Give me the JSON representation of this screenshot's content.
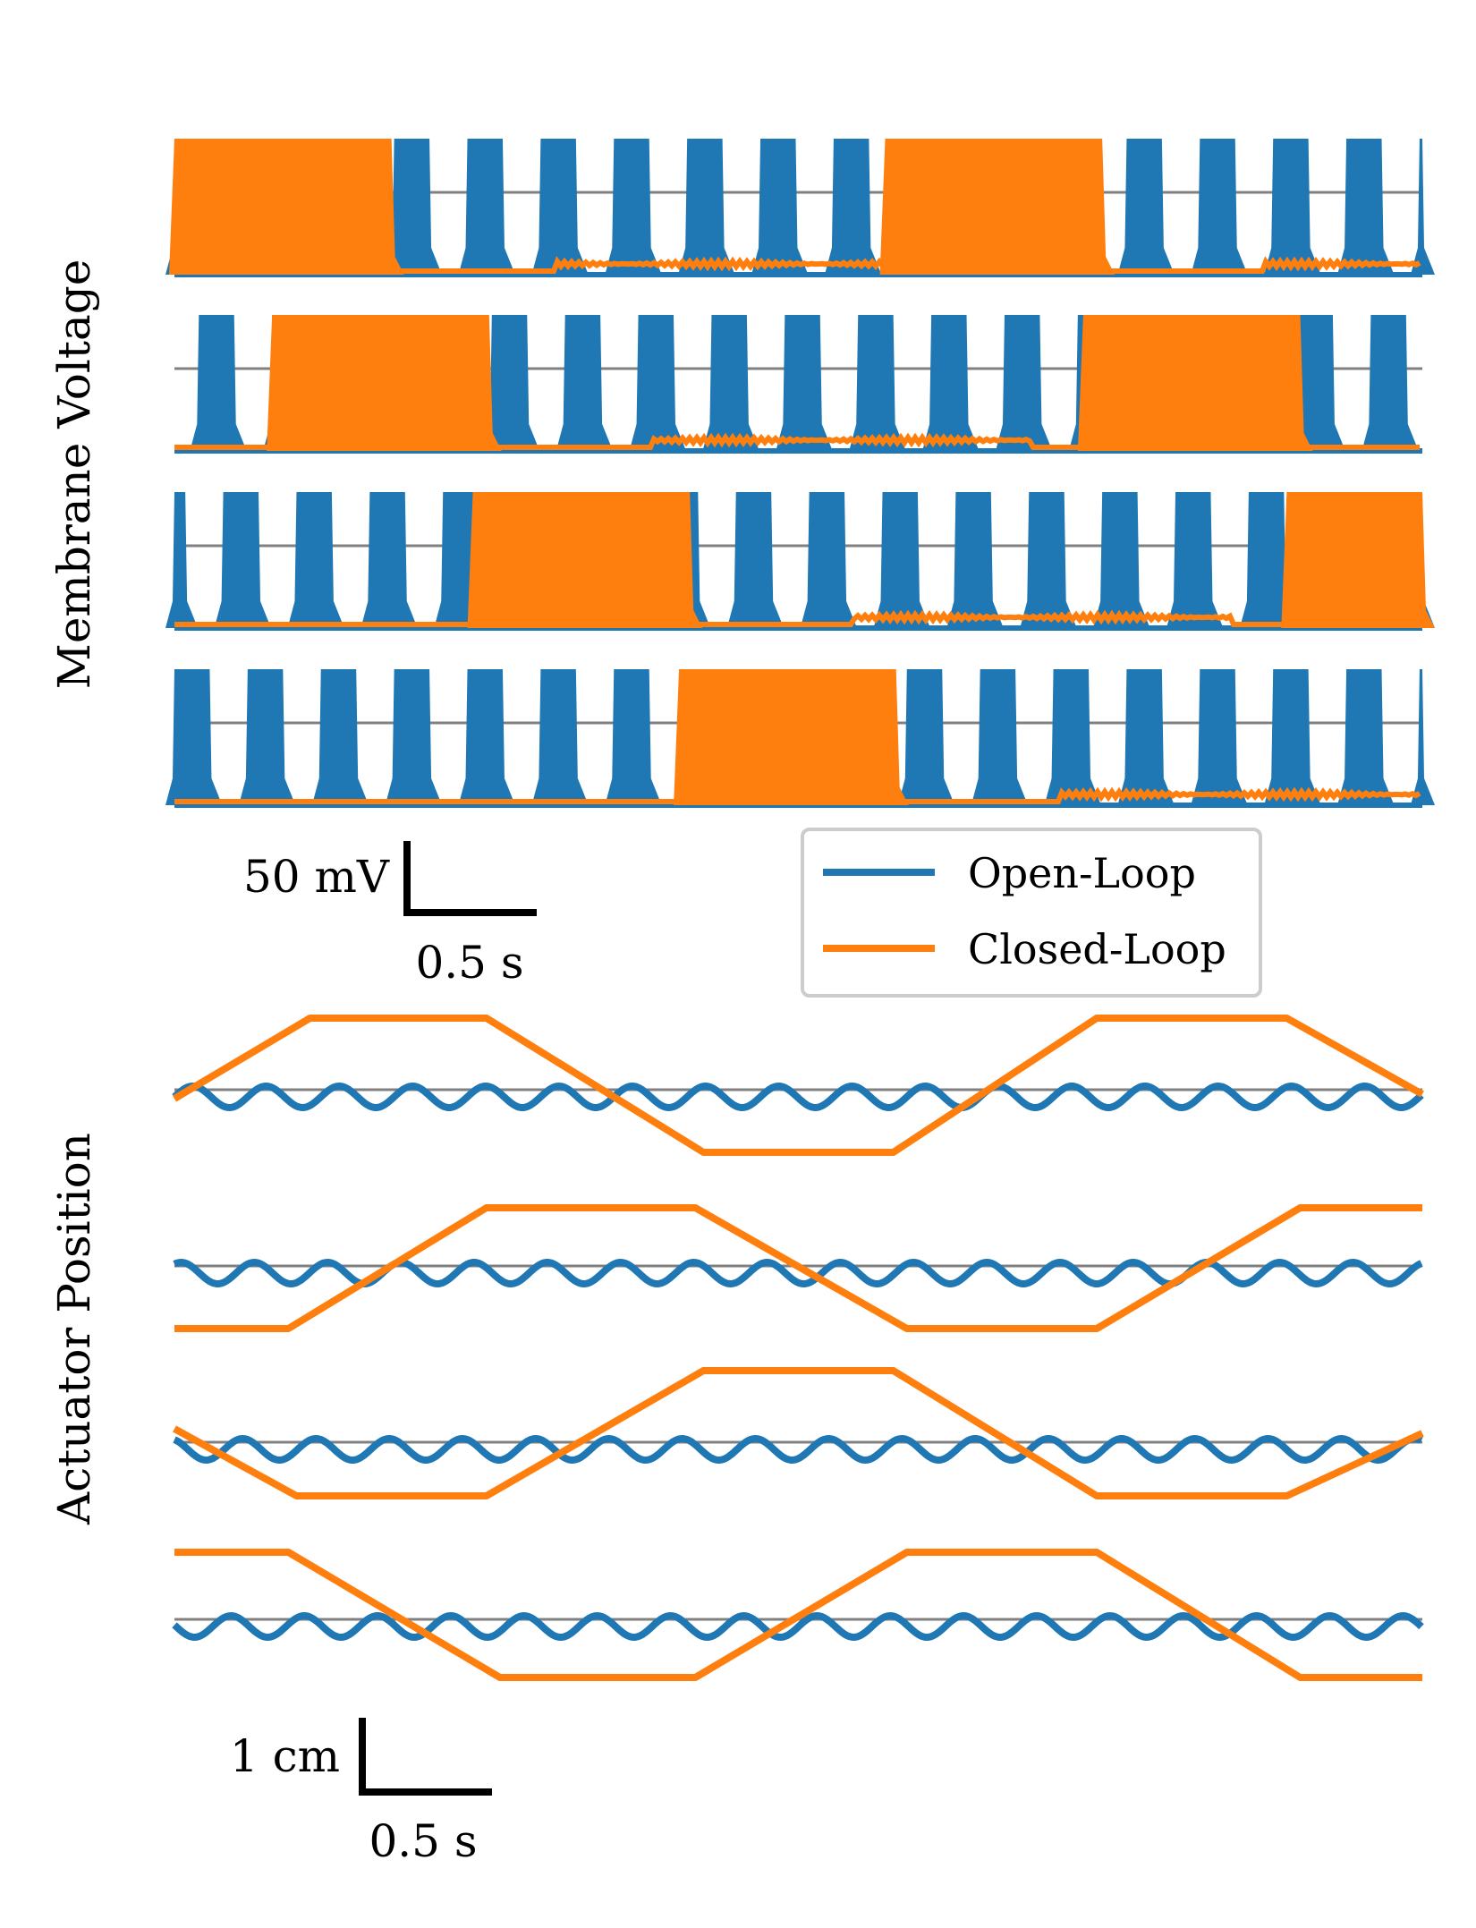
{
  "figure": {
    "colors": {
      "open_loop": "#1f77b4",
      "closed_loop": "#ff7f0e",
      "baseline": "#808080",
      "scalebar": "#000000",
      "legend_border": "#cccccc"
    }
  },
  "chart_data": [
    {
      "type": "line",
      "title": "",
      "ylabel": "Membrane Voltage",
      "xlabel": "",
      "grid": false,
      "legend_position": "center-right below panel",
      "legend": [
        "Open-Loop",
        "Closed-Loop"
      ],
      "scalebar": {
        "vertical_label": "50 mV",
        "vertical_value": 50,
        "vertical_unit": "mV",
        "horizontal_label": "0.5 s",
        "horizontal_value": 0.5,
        "horizontal_unit": "s"
      },
      "x_range_s": [
        0,
        4.6
      ],
      "series": [
        {
          "name": "Open-Loop",
          "description": "bursting neurons",
          "burst_period_s": 0.27,
          "burst_duration_s": 0.13,
          "burst_peak_mV": 30,
          "baseline_mV": -50,
          "traces": [
            {
              "neuron": 1,
              "phase_s": 0.0
            },
            {
              "neuron": 2,
              "phase_s": 0.0
            },
            {
              "neuron": 3,
              "phase_s": 0.0
            },
            {
              "neuron": 4,
              "phase_s": 0.0
            }
          ]
        },
        {
          "name": "Closed-Loop",
          "description": "bursting neurons",
          "burst_period_s": 2.62,
          "burst_duration_s": 0.8,
          "burst_peak_mV": 30,
          "baseline_mV": -50,
          "traces": [
            {
              "neuron": 1,
              "burst_starts_s": [
                0.0,
                2.62
              ]
            },
            {
              "neuron": 2,
              "burst_starts_s": [
                0.36,
                3.35
              ]
            },
            {
              "neuron": 3,
              "burst_starts_s": [
                1.1,
                4.1
              ]
            },
            {
              "neuron": 4,
              "burst_starts_s": [
                1.86
              ]
            }
          ]
        }
      ]
    },
    {
      "type": "line",
      "title": "",
      "ylabel": "Actuator Position",
      "xlabel": "",
      "grid": false,
      "scalebar": {
        "vertical_label": "1 cm",
        "vertical_value": 1,
        "vertical_unit": "cm",
        "horizontal_label": "0.5 s",
        "horizontal_value": 0.5,
        "horizontal_unit": "s"
      },
      "x_range_s": [
        0,
        4.6
      ],
      "series": [
        {
          "name": "Open-Loop",
          "shape": "sine",
          "amplitude_cm": 0.12,
          "period_s": 0.27,
          "traces": [
            {
              "actuator": 1
            },
            {
              "actuator": 2
            },
            {
              "actuator": 3
            },
            {
              "actuator": 4
            }
          ]
        },
        {
          "name": "Closed-Loop",
          "shape": "trapezoid",
          "amplitude_cm": 0.75,
          "period_s": 2.62,
          "keypoints_s_cm": [
            [
              [
                0.0,
                -0.1
              ],
              [
                0.5,
                0.8
              ],
              [
                1.15,
                0.8
              ],
              [
                1.95,
                -0.7
              ],
              [
                2.65,
                -0.7
              ],
              [
                3.4,
                0.8
              ],
              [
                4.1,
                0.8
              ],
              [
                4.6,
                -0.05
              ]
            ],
            [
              [
                0.0,
                -0.7
              ],
              [
                0.42,
                -0.7
              ],
              [
                1.15,
                0.65
              ],
              [
                1.92,
                0.65
              ],
              [
                2.7,
                -0.7
              ],
              [
                3.4,
                -0.7
              ],
              [
                4.15,
                0.65
              ],
              [
                4.6,
                0.65
              ]
            ],
            [
              [
                0.0,
                0.15
              ],
              [
                0.45,
                -0.6
              ],
              [
                1.15,
                -0.6
              ],
              [
                1.95,
                0.8
              ],
              [
                2.65,
                0.8
              ],
              [
                3.4,
                -0.6
              ],
              [
                4.1,
                -0.6
              ],
              [
                4.6,
                0.1
              ]
            ],
            [
              [
                0.0,
                0.75
              ],
              [
                0.42,
                0.75
              ],
              [
                1.2,
                -0.65
              ],
              [
                1.92,
                -0.65
              ],
              [
                2.7,
                0.75
              ],
              [
                3.4,
                0.75
              ],
              [
                4.15,
                -0.65
              ],
              [
                4.6,
                -0.65
              ]
            ]
          ]
        }
      ]
    }
  ]
}
